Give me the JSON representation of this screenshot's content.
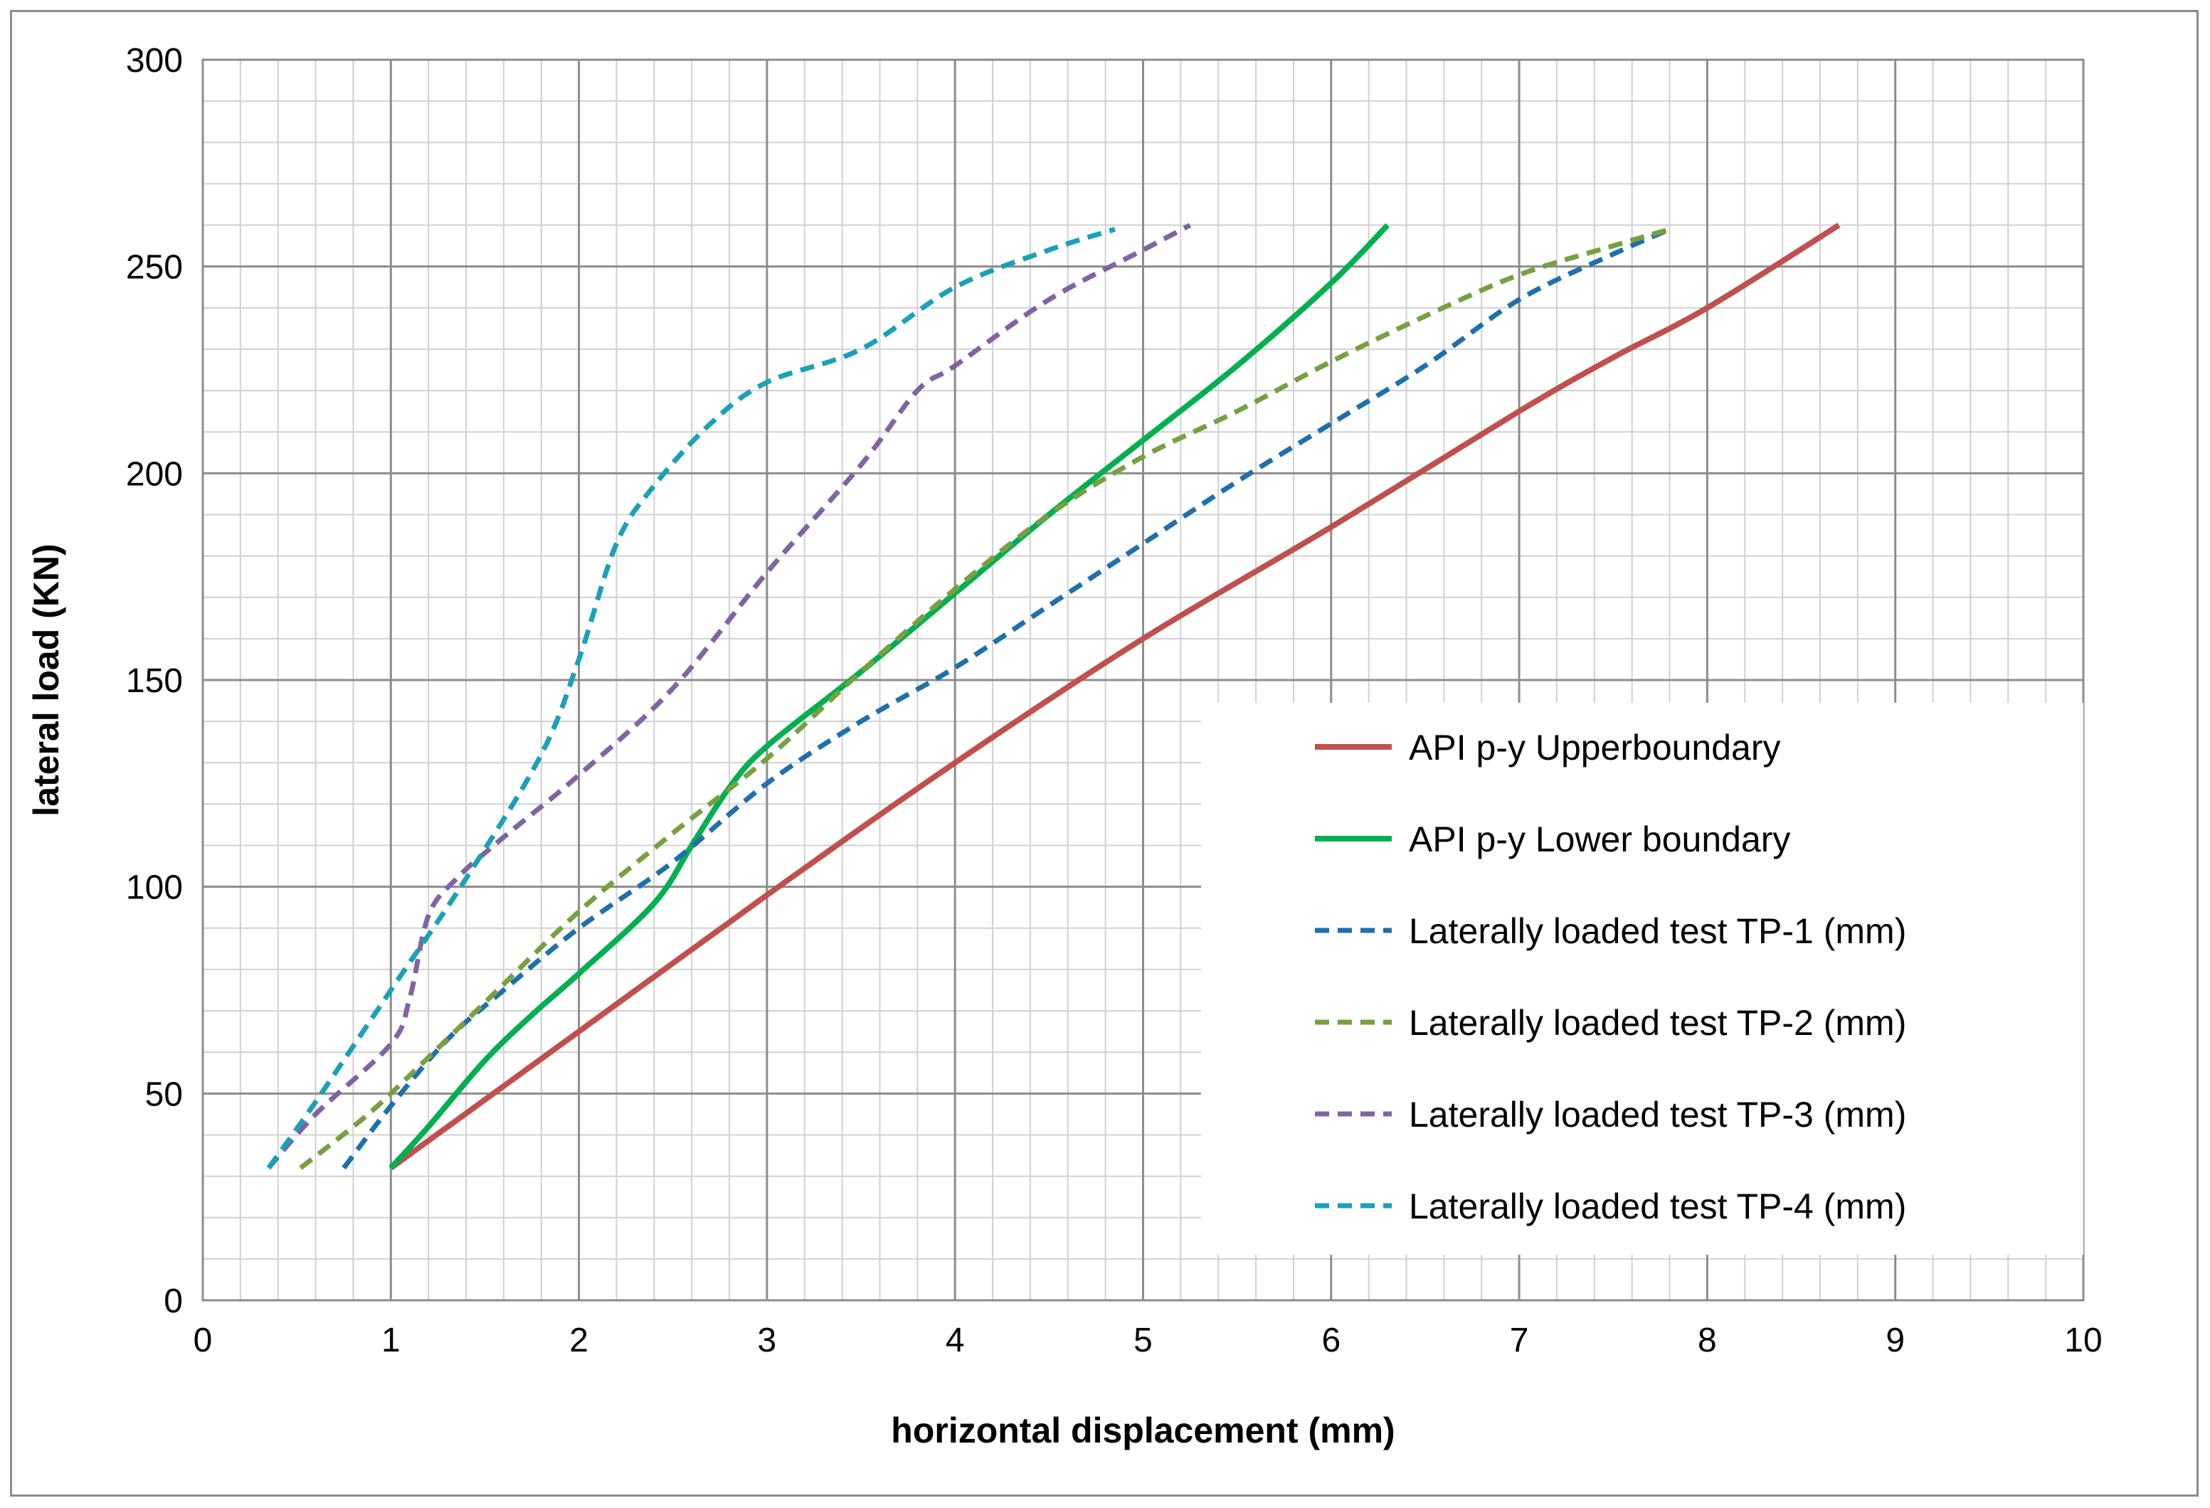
{
  "chart_data": {
    "type": "line",
    "title": "",
    "xlabel": "horizontal displacement (mm)",
    "ylabel": "lateral load (KN)",
    "xlim": [
      0,
      10
    ],
    "ylim": [
      0,
      300
    ],
    "x_ticks": [
      "0",
      "1",
      "2",
      "3",
      "4",
      "5",
      "6",
      "7",
      "8",
      "9",
      "10"
    ],
    "y_ticks": [
      "0",
      "50",
      "100",
      "150",
      "200",
      "250",
      "300"
    ],
    "grid": true,
    "legend_position": "lower-right",
    "series": [
      {
        "name": "API p-y Upperboundary",
        "color": "#c0504d",
        "dash": "solid",
        "points": [
          [
            1.0,
            32
          ],
          [
            2.0,
            65
          ],
          [
            3.0,
            98
          ],
          [
            4.0,
            130
          ],
          [
            5.0,
            160
          ],
          [
            6.0,
            187
          ],
          [
            7.0,
            215
          ],
          [
            7.5,
            228
          ],
          [
            8.0,
            240
          ],
          [
            8.7,
            260
          ]
        ]
      },
      {
        "name": "API p-y Lower boundary",
        "color": "#00b050",
        "dash": "solid",
        "points": [
          [
            1.0,
            32
          ],
          [
            1.2,
            42
          ],
          [
            1.5,
            58
          ],
          [
            1.75,
            69
          ],
          [
            2.0,
            79
          ],
          [
            2.4,
            96
          ],
          [
            2.6,
            110
          ],
          [
            2.8,
            124
          ],
          [
            3.0,
            134
          ],
          [
            3.5,
            152
          ],
          [
            4.0,
            171
          ],
          [
            4.5,
            190
          ],
          [
            5.0,
            208
          ],
          [
            5.5,
            226
          ],
          [
            6.0,
            246
          ],
          [
            6.3,
            260
          ]
        ]
      },
      {
        "name": "Laterally loaded test TP-1 (mm)",
        "color": "#1f6fad",
        "dash": "dashed",
        "points": [
          [
            0.75,
            32
          ],
          [
            1.0,
            47
          ],
          [
            1.3,
            63
          ],
          [
            1.6,
            75
          ],
          [
            2.0,
            90
          ],
          [
            2.5,
            106
          ],
          [
            3.0,
            125
          ],
          [
            3.5,
            140
          ],
          [
            4.0,
            153
          ],
          [
            4.5,
            168
          ],
          [
            5.0,
            183
          ],
          [
            5.5,
            198
          ],
          [
            6.0,
            212
          ],
          [
            6.5,
            226
          ],
          [
            7.0,
            242
          ],
          [
            7.5,
            253
          ],
          [
            7.8,
            259
          ]
        ]
      },
      {
        "name": "Laterally loaded test TP-2 (mm)",
        "color": "#77a040",
        "dash": "dashed",
        "points": [
          [
            0.52,
            32
          ],
          [
            0.8,
            42
          ],
          [
            1.0,
            50
          ],
          [
            1.5,
            72
          ],
          [
            2.0,
            94
          ],
          [
            2.5,
            113
          ],
          [
            3.0,
            131
          ],
          [
            3.5,
            152
          ],
          [
            4.0,
            172
          ],
          [
            4.5,
            190
          ],
          [
            5.0,
            204
          ],
          [
            5.5,
            215
          ],
          [
            6.0,
            227
          ],
          [
            6.5,
            238
          ],
          [
            7.0,
            248
          ],
          [
            7.5,
            255
          ],
          [
            7.8,
            259
          ]
        ]
      },
      {
        "name": "Laterally loaded test TP-3 (mm)",
        "color": "#8064a2",
        "dash": "dashed",
        "points": [
          [
            0.35,
            32
          ],
          [
            0.6,
            45
          ],
          [
            1.0,
            62
          ],
          [
            1.1,
            73
          ],
          [
            1.2,
            93
          ],
          [
            1.35,
            102
          ],
          [
            1.6,
            112
          ],
          [
            2.0,
            127
          ],
          [
            2.5,
            148
          ],
          [
            3.0,
            176
          ],
          [
            3.5,
            202
          ],
          [
            3.8,
            220
          ],
          [
            4.0,
            226
          ],
          [
            4.5,
            242
          ],
          [
            5.0,
            254
          ],
          [
            5.25,
            260
          ]
        ]
      },
      {
        "name": "Laterally loaded test TP-4 (mm)",
        "color": "#1aa0b8",
        "dash": "dashed",
        "points": [
          [
            0.35,
            32
          ],
          [
            0.6,
            48
          ],
          [
            1.0,
            75
          ],
          [
            1.4,
            102
          ],
          [
            1.8,
            132
          ],
          [
            2.0,
            155
          ],
          [
            2.2,
            183
          ],
          [
            2.4,
            197
          ],
          [
            2.7,
            212
          ],
          [
            3.0,
            222
          ],
          [
            3.5,
            230
          ],
          [
            4.0,
            245
          ],
          [
            4.5,
            254
          ],
          [
            4.85,
            259
          ]
        ]
      }
    ]
  }
}
